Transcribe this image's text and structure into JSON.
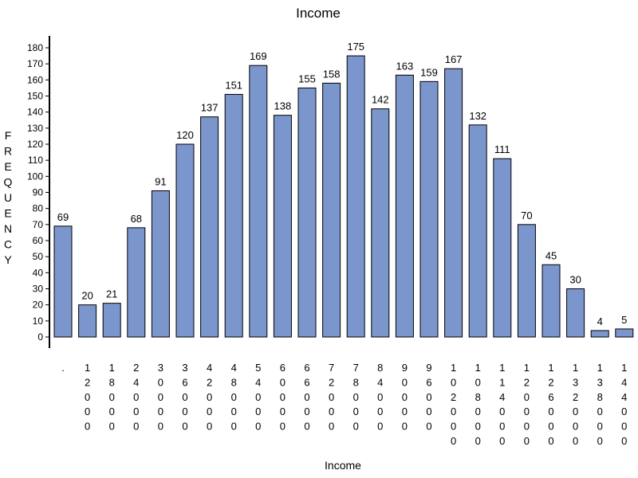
{
  "chart_data": {
    "type": "bar",
    "title": "Income",
    "xlabel": "Income",
    "ylabel": "FREQUENCY",
    "categories": [
      ".",
      "12000",
      "18000",
      "24000",
      "30000",
      "36000",
      "42000",
      "48000",
      "54000",
      "60000",
      "66000",
      "72000",
      "78000",
      "84000",
      "90000",
      "96000",
      "102000",
      "108000",
      "114000",
      "120000",
      "126000",
      "132000",
      "138000",
      "144000"
    ],
    "values": [
      69,
      20,
      21,
      68,
      91,
      120,
      137,
      151,
      169,
      138,
      155,
      158,
      175,
      142,
      163,
      159,
      167,
      132,
      111,
      70,
      45,
      30,
      4,
      5
    ],
    "ylim": [
      0,
      180
    ],
    "yticks": [
      0,
      10,
      20,
      30,
      40,
      50,
      60,
      70,
      80,
      90,
      100,
      110,
      120,
      130,
      140,
      150,
      160,
      170,
      180
    ],
    "bar_color": "#7b96cc",
    "grid": false,
    "legend": false
  }
}
